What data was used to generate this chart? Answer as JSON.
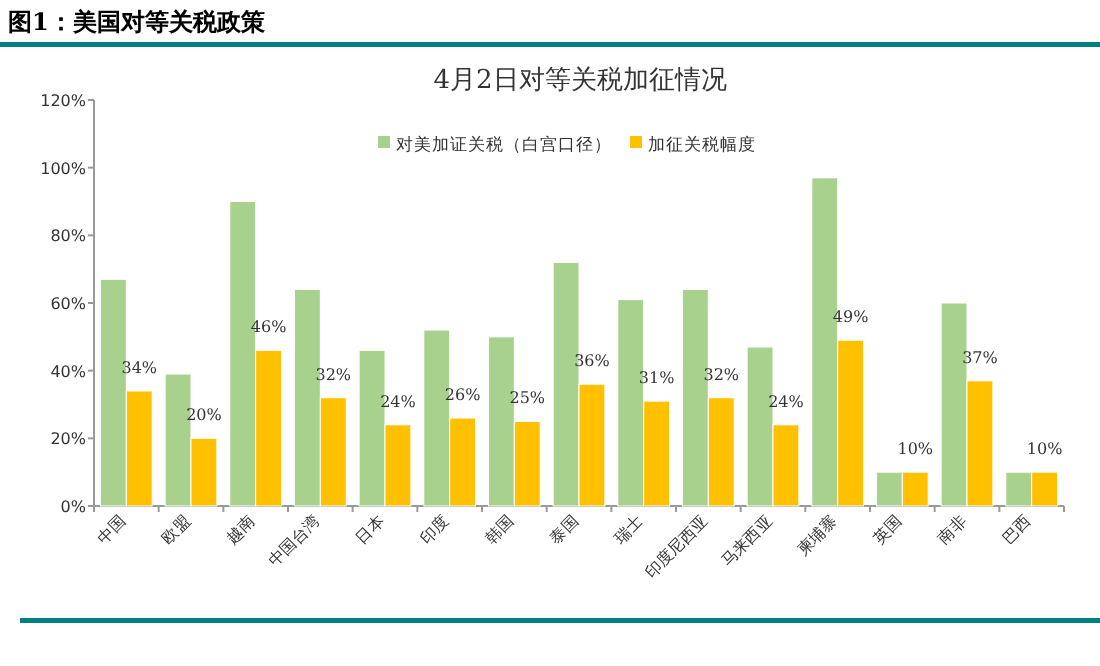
{
  "chart_data": {
    "type": "bar",
    "title": "图1：美国对等关税政策",
    "subtitle": "4月2日对等关税加征情况",
    "categories": [
      "中国",
      "欧盟",
      "越南",
      "中国台湾",
      "日本",
      "印度",
      "韩国",
      "泰国",
      "瑞士",
      "印度尼西亚",
      "马来西亚",
      "柬埔寨",
      "英国",
      "南非",
      "巴西"
    ],
    "series": [
      {
        "name": "对美加证关税（白宫口径）",
        "color": "#a9d18e",
        "values": [
          67,
          39,
          90,
          64,
          46,
          52,
          50,
          72,
          61,
          64,
          47,
          97,
          10,
          60,
          10
        ]
      },
      {
        "name": "加征关税幅度",
        "color": "#ffc000",
        "values": [
          34,
          20,
          46,
          32,
          24,
          26,
          25,
          36,
          31,
          32,
          24,
          49,
          10,
          37,
          10
        ],
        "value_labels": [
          "34%",
          "20%",
          "46%",
          "32%",
          "24%",
          "26%",
          "25%",
          "36%",
          "31%",
          "32%",
          "24%",
          "49%",
          "10%",
          "37%",
          "10%"
        ]
      }
    ],
    "ylim": [
      0,
      120
    ],
    "yticks": [
      {
        "value": 0,
        "label": "0%"
      },
      {
        "value": 20,
        "label": "20%"
      },
      {
        "value": 40,
        "label": "40%"
      },
      {
        "value": 60,
        "label": "60%"
      },
      {
        "value": 80,
        "label": "80%"
      },
      {
        "value": 100,
        "label": "100%"
      },
      {
        "value": 120,
        "label": "120%"
      }
    ],
    "legend": "top"
  }
}
